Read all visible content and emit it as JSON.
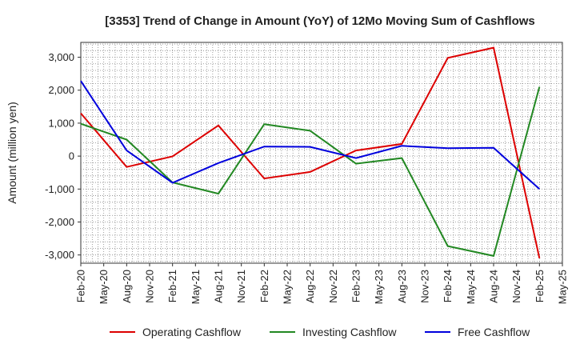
{
  "chart_data": {
    "type": "line",
    "title": "[3353]  Trend of Change in Amount (YoY) of 12Mo Moving Sum of Cashflows",
    "xlabel": "",
    "ylabel": "Amount (million yen)",
    "ylim": [
      -3250,
      3450
    ],
    "yticks": [
      3000,
      2000,
      1000,
      0,
      -1000,
      -2000,
      -3000
    ],
    "ytick_labels": [
      "3,000",
      "2,000",
      "1,000",
      "0",
      "-1,000",
      "-2,000",
      "-3,000"
    ],
    "categories": [
      "Feb-20",
      "May-20",
      "Aug-20",
      "Nov-20",
      "Feb-21",
      "May-21",
      "Aug-21",
      "Nov-21",
      "Feb-22",
      "May-22",
      "Aug-22",
      "Nov-22",
      "Feb-23",
      "May-23",
      "Aug-23",
      "Nov-23",
      "Feb-24",
      "May-24",
      "Aug-24",
      "Nov-24",
      "Feb-25",
      "May-25"
    ],
    "grid": true,
    "legend_position": "bottom",
    "series": [
      {
        "name": "Operating Cashflow",
        "color": "#dd0000",
        "values": [
          1300,
          null,
          -330,
          null,
          -10,
          null,
          930,
          null,
          -680,
          null,
          -480,
          null,
          170,
          null,
          370,
          null,
          2980,
          null,
          3290,
          null,
          -3100,
          null
        ]
      },
      {
        "name": "Investing Cashflow",
        "color": "#228822",
        "values": [
          980,
          null,
          500,
          null,
          -800,
          null,
          -1140,
          null,
          970,
          null,
          770,
          null,
          -230,
          null,
          -60,
          null,
          -2730,
          null,
          -3030,
          null,
          2100,
          null
        ]
      },
      {
        "name": "Free Cashflow",
        "color": "#0000dd",
        "values": [
          2280,
          null,
          170,
          null,
          -810,
          null,
          -210,
          null,
          290,
          null,
          280,
          null,
          -60,
          null,
          310,
          null,
          240,
          null,
          250,
          null,
          -1000,
          null
        ]
      }
    ]
  }
}
